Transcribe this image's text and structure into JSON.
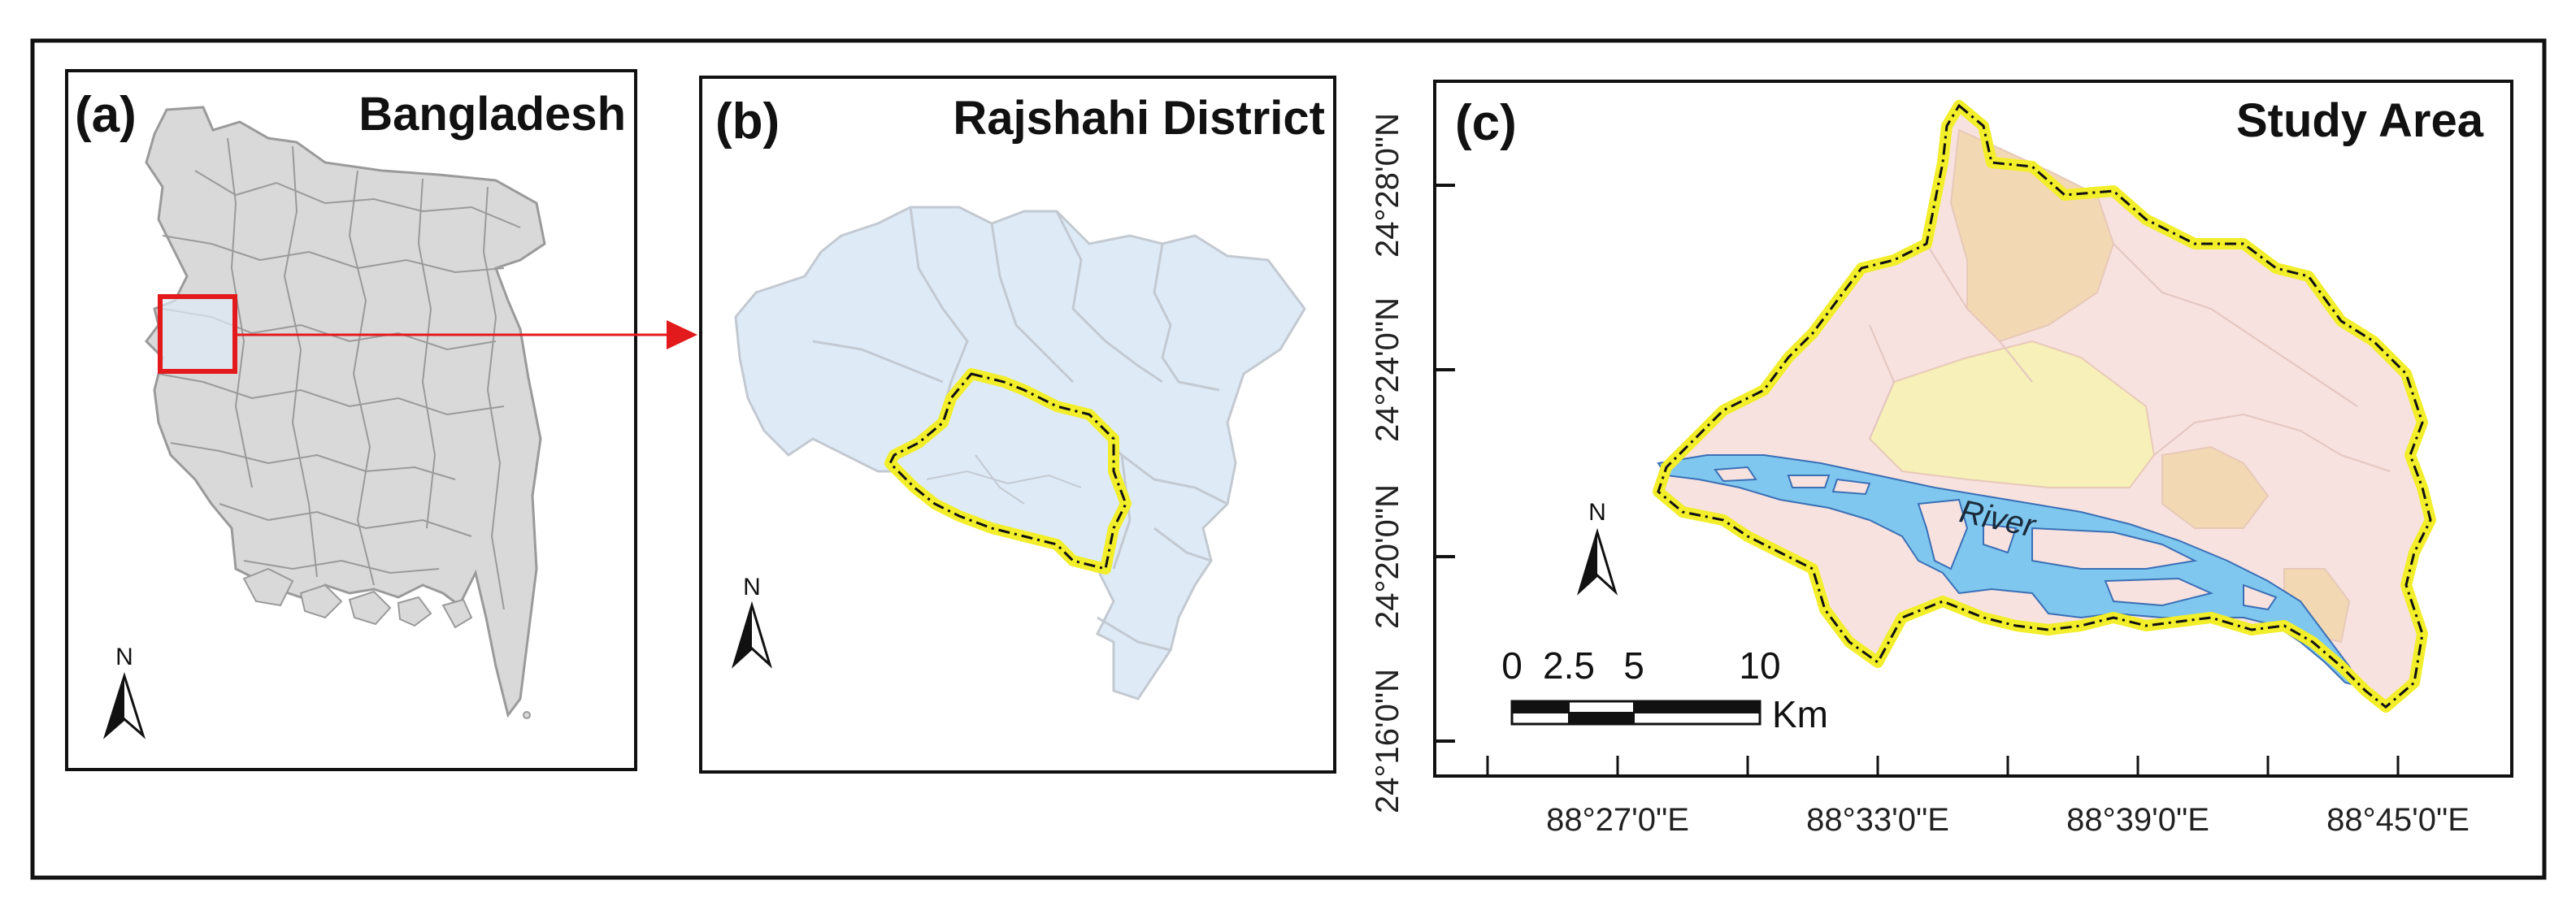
{
  "panels": {
    "a": {
      "label": "(a)",
      "title": "Bangladesh"
    },
    "b": {
      "label": "(b)",
      "title": "Rajshahi District"
    },
    "c": {
      "label": "(c)",
      "title": "Study Area"
    }
  },
  "north_arrow_letter": "N",
  "river_label": "River",
  "latitude_labels": [
    "24°28'0\"N",
    "24°24'0\"N",
    "24°20'0\"N",
    "24°16'0\"N"
  ],
  "longitude_labels": [
    "88°27'0\"E",
    "88°33'0\"E",
    "88°39'0\"E",
    "88°45'0\"E"
  ],
  "scale_bar": {
    "ticks": [
      "0",
      "2.5",
      "5",
      "10"
    ],
    "unit": "Km"
  },
  "colors": {
    "country_fill": "#d9d9d9",
    "district_fill": "#deebf7",
    "study_boundary": "#f2ee2a",
    "study_land": "#f7e2df",
    "study_upazila_orange": "#f3d8b4",
    "study_upazila_yellow": "#f7f0b8",
    "river": "#7fc7ee",
    "inset_marker": "#e31a1c",
    "arrow": "#e31a1c"
  }
}
